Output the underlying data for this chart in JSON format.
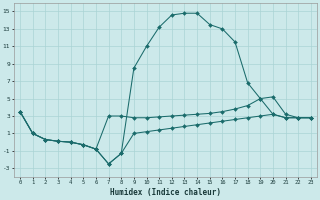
{
  "xlabel": "Humidex (Indice chaleur)",
  "bg_color": "#cce9ea",
  "grid_color": "#aad4d5",
  "line_color": "#1a6b6b",
  "xlim": [
    -0.5,
    23.5
  ],
  "ylim": [
    -4,
    16
  ],
  "yticks": [
    -3,
    -1,
    1,
    3,
    5,
    7,
    9,
    11,
    13,
    15
  ],
  "xticks": [
    0,
    1,
    2,
    3,
    4,
    5,
    6,
    7,
    8,
    9,
    10,
    11,
    12,
    13,
    14,
    15,
    16,
    17,
    18,
    19,
    20,
    21,
    22,
    23
  ],
  "line1_x": [
    0,
    1,
    2,
    3,
    4,
    5,
    6,
    7,
    8,
    9,
    10,
    11,
    12,
    13,
    14,
    15,
    16,
    17,
    18,
    19,
    20,
    21,
    22,
    23
  ],
  "line1_y": [
    3.5,
    1.0,
    0.3,
    0.1,
    0.0,
    -0.3,
    -0.8,
    -2.5,
    -1.3,
    8.5,
    11.0,
    13.2,
    14.6,
    14.8,
    14.8,
    13.5,
    13.0,
    11.5,
    6.8,
    5.0,
    3.2,
    2.8,
    2.8,
    2.8
  ],
  "line2_x": [
    0,
    1,
    2,
    3,
    4,
    5,
    6,
    7,
    8,
    9,
    10,
    11,
    12,
    13,
    14,
    15,
    16,
    17,
    18,
    19,
    20,
    21,
    22,
    23
  ],
  "line2_y": [
    3.5,
    1.0,
    0.3,
    0.1,
    0.0,
    -0.3,
    -0.8,
    3.0,
    3.0,
    2.8,
    2.8,
    2.9,
    3.0,
    3.1,
    3.2,
    3.3,
    3.5,
    3.8,
    4.2,
    5.0,
    5.2,
    3.2,
    2.8,
    2.8
  ],
  "line3_x": [
    0,
    1,
    2,
    3,
    4,
    5,
    6,
    7,
    8,
    9,
    10,
    11,
    12,
    13,
    14,
    15,
    16,
    17,
    18,
    19,
    20,
    21,
    22,
    23
  ],
  "line3_y": [
    3.5,
    1.0,
    0.3,
    0.1,
    0.0,
    -0.3,
    -0.8,
    -2.5,
    -1.3,
    1.0,
    1.2,
    1.4,
    1.6,
    1.8,
    2.0,
    2.2,
    2.4,
    2.6,
    2.8,
    3.0,
    3.2,
    2.8,
    2.8,
    2.8
  ]
}
